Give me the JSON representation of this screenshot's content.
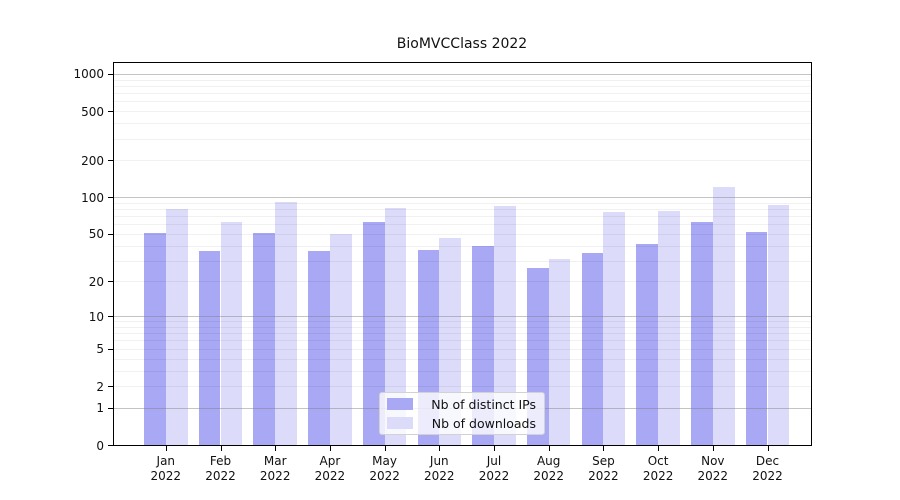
{
  "title": "BioMVCClass 2022",
  "legend": {
    "items": [
      {
        "label": "Nb of distinct IPs",
        "color": "#a8a8f5"
      },
      {
        "label": "Nb of downloads",
        "color": "#dcdcfa"
      }
    ]
  },
  "colors": {
    "bar_distinct_ips": "#a8a8f5",
    "bar_downloads": "#dcdcfa",
    "grid_minor": "rgba(0,0,0,0.055)",
    "grid_major": "rgba(125,125,125,0.45)",
    "axis": "#000000",
    "text": "#111111",
    "background": "#ffffff"
  },
  "chart_data": {
    "type": "bar",
    "title": "BioMVCClass 2022",
    "xlabel": "",
    "ylabel": "",
    "year": "2022",
    "months": [
      "Jan",
      "Feb",
      "Mar",
      "Apr",
      "May",
      "Jun",
      "Jul",
      "Aug",
      "Sep",
      "Oct",
      "Nov",
      "Dec"
    ],
    "categories": [
      "Jan 2022",
      "Feb 2022",
      "Mar 2022",
      "Apr 2022",
      "May 2022",
      "Jun 2022",
      "Jul 2022",
      "Aug 2022",
      "Sep 2022",
      "Oct 2022",
      "Nov 2022",
      "Dec 2022"
    ],
    "series": [
      {
        "name": "Nb of distinct IPs",
        "color": "#a8a8f5",
        "values": [
          51,
          36,
          51,
          36,
          62,
          37,
          40,
          26,
          35,
          41,
          62,
          52
        ]
      },
      {
        "name": "Nb of downloads",
        "color": "#dcdcfa",
        "values": [
          80,
          62,
          91,
          50,
          82,
          46,
          85,
          31,
          76,
          77,
          120,
          87
        ]
      }
    ],
    "yscale": "symlog",
    "ylim": [
      0,
      1250
    ],
    "yticks": [
      0,
      1,
      2,
      5,
      10,
      20,
      50,
      100,
      200,
      500,
      1000
    ],
    "grid": "horizontal, minor lines at 2-9 of each decade, major at powers of 10",
    "legend_position": "lower center"
  }
}
